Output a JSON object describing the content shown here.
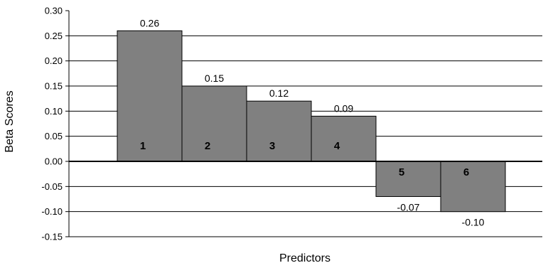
{
  "chart_data": {
    "type": "bar",
    "categories": [
      "1",
      "2",
      "3",
      "4",
      "5",
      "6"
    ],
    "values": [
      0.26,
      0.15,
      0.12,
      0.09,
      -0.07,
      -0.1
    ],
    "value_labels": [
      "0.26",
      "0.15",
      "0.12",
      "0.09",
      "-0.07",
      "-0.10"
    ],
    "ylabel": "Beta Scores",
    "xlabel": "Predictors",
    "ylim": [
      -0.15,
      0.3
    ],
    "yticks": [
      0.3,
      0.25,
      0.2,
      0.15,
      0.1,
      0.05,
      0.0,
      -0.05,
      -0.1,
      -0.15
    ],
    "ytick_labels": [
      "0.30",
      "0.25",
      "0.20",
      "0.15",
      "0.10",
      "0.05",
      "0.00",
      "-0.05",
      "-0.10",
      "-0.15"
    ],
    "grid": true,
    "bar_color": "#808080",
    "bar_edge_color": "#000000",
    "gridline_color": "#000000"
  }
}
